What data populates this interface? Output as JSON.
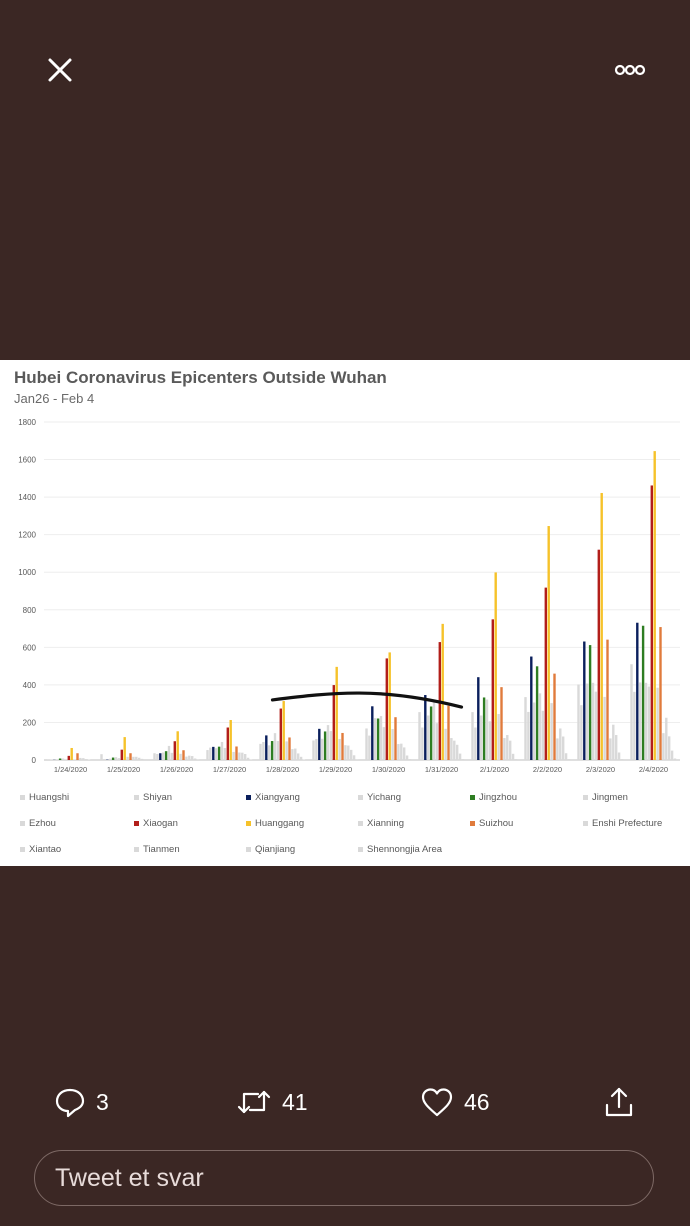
{
  "toolbar": {
    "close_icon": "close-icon",
    "more_icon": "more-options-icon"
  },
  "chart": {
    "title": "Hubei Coronavirus Epicenters Outside Wuhan",
    "subtitle": "Jan26 - Feb 4"
  },
  "chart_data": {
    "type": "bar",
    "title": "Hubei Coronavirus Epicenters Outside Wuhan",
    "subtitle": "Jan26 - Feb 4",
    "ylim": [
      0,
      1800
    ],
    "yticks": [
      0,
      200,
      400,
      600,
      800,
      1000,
      1200,
      1400,
      1600,
      1800
    ],
    "grid": true,
    "legend_position": "bottom",
    "categories": [
      "1/24/2020",
      "1/25/2020",
      "1/26/2020",
      "1/27/2020",
      "1/28/2020",
      "1/29/2020",
      "1/30/2020",
      "1/31/2020",
      "2/1/2020",
      "2/2/2020",
      "2/3/2020",
      "2/4/2020"
    ],
    "series": [
      {
        "name": "Huangshi",
        "color": "#d9d9d9",
        "values": [
          4,
          31,
          36,
          53,
          86,
          104,
          168,
          255,
          255,
          335,
          402,
          510
        ]
      },
      {
        "name": "Shiyan",
        "color": "#d9d9d9",
        "values": [
          2,
          5,
          32,
          66,
          96,
          112,
          130,
          173,
          173,
          256,
          292,
          363
        ]
      },
      {
        "name": "Xiangyang",
        "color": "#0a1f5c",
        "values": [
          1,
          2,
          36,
          70,
          131,
          166,
          286,
          346,
          441,
          551,
          631,
          731
        ]
      },
      {
        "name": "Yichang",
        "color": "#d9d9d9",
        "values": [
          1,
          7,
          40,
          63,
          78,
          113,
          223,
          237,
          237,
          306,
          407,
          413
        ]
      },
      {
        "name": "Jingzhou",
        "color": "#2e7d22",
        "values": [
          8,
          13,
          47,
          71,
          101,
          152,
          221,
          285,
          333,
          499,
          612,
          715
        ]
      },
      {
        "name": "Jingmen",
        "color": "#d9d9d9",
        "values": [
          8,
          15,
          75,
          96,
          143,
          186,
          234,
          322,
          322,
          355,
          411,
          411
        ]
      },
      {
        "name": "Ezhou",
        "color": "#d9d9d9",
        "values": [
          1,
          10,
          38,
          64,
          101,
          154,
          175,
          196,
          206,
          262,
          364,
          391
        ]
      },
      {
        "name": "Xiaogan",
        "color": "#b21e1a",
        "values": [
          22,
          55,
          100,
          173,
          274,
          399,
          541,
          628,
          749,
          918,
          1120,
          1462
        ]
      },
      {
        "name": "Huanggang",
        "color": "#f6c22a",
        "values": [
          64,
          122,
          153,
          213,
          314,
          496,
          573,
          725,
          999,
          1246,
          1422,
          1645
        ]
      },
      {
        "name": "Xianning",
        "color": "#d9d9d9",
        "values": [
          3,
          17,
          33,
          43,
          99,
          112,
          165,
          166,
          245,
          303,
          336,
          385
        ]
      },
      {
        "name": "Suizhou",
        "color": "#e07b3c",
        "values": [
          36,
          36,
          52,
          72,
          120,
          144,
          228,
          289,
          388,
          460,
          641,
          708
        ]
      },
      {
        "name": "Enshi Prefecture",
        "color": "#d9d9d9",
        "values": [
          11,
          17,
          18,
          40,
          58,
          79,
          85,
          117,
          117,
          115,
          115,
          143
        ]
      },
      {
        "name": "Xiantao",
        "color": "#d9d9d9",
        "values": [
          10,
          17,
          23,
          39,
          61,
          77,
          87,
          103,
          133,
          168,
          188,
          225
        ]
      },
      {
        "name": "Tianmen",
        "color": "#d9d9d9",
        "values": [
          5,
          12,
          21,
          32,
          35,
          54,
          67,
          81,
          103,
          125,
          133,
          126
        ]
      },
      {
        "name": "Qianjiang",
        "color": "#d9d9d9",
        "values": [
          3,
          6,
          8,
          12,
          17,
          25,
          24,
          34,
          33,
          36,
          40,
          50
        ]
      },
      {
        "name": "Shennongjia Area",
        "color": "#d9d9d9",
        "values": [
          0,
          0,
          1,
          2,
          3,
          4,
          5,
          5,
          5,
          5,
          5,
          8
        ]
      }
    ],
    "annotation": "hand-drawn black arc over 1/28/2020 - 1/31/2020"
  },
  "actions": {
    "reply": {
      "count": "3",
      "icon": "reply-icon"
    },
    "retweet": {
      "count": "41",
      "icon": "retweet-icon"
    },
    "like": {
      "count": "46",
      "icon": "heart-icon"
    },
    "share": {
      "icon": "share-icon"
    }
  },
  "reply_box": {
    "placeholder": "Tweet et svar"
  }
}
